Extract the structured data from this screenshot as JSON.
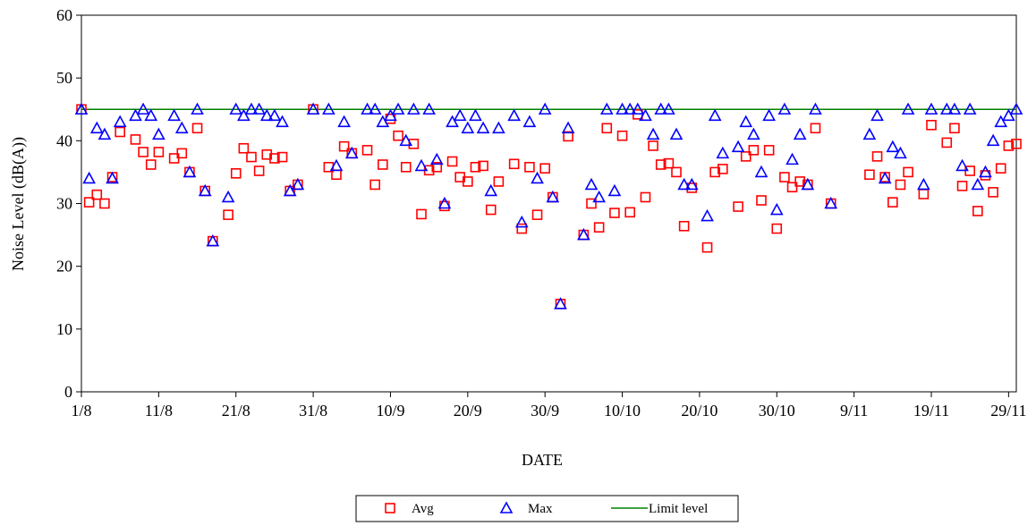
{
  "chart_data": {
    "type": "scatter",
    "title": "",
    "xlabel": "DATE",
    "ylabel": "Noise Level (dB(A))",
    "ylim": [
      0,
      60
    ],
    "yticks": [
      0,
      10,
      20,
      30,
      40,
      50,
      60
    ],
    "xlim": [
      "2000-08-01",
      "2000-11-30"
    ],
    "xticks": [
      {
        "date": "2000-08-01",
        "label": "1/8"
      },
      {
        "date": "2000-08-11",
        "label": "11/8"
      },
      {
        "date": "2000-08-21",
        "label": "21/8"
      },
      {
        "date": "2000-08-31",
        "label": "31/8"
      },
      {
        "date": "2000-09-10",
        "label": "10/9"
      },
      {
        "date": "2000-09-20",
        "label": "20/9"
      },
      {
        "date": "2000-09-30",
        "label": "30/9"
      },
      {
        "date": "2000-10-10",
        "label": "10/10"
      },
      {
        "date": "2000-10-20",
        "label": "20/10"
      },
      {
        "date": "2000-10-30",
        "label": "30/10"
      },
      {
        "date": "2000-11-09",
        "label": "9/11"
      },
      {
        "date": "2000-11-19",
        "label": "19/11"
      },
      {
        "date": "2000-11-29",
        "label": "29/11"
      }
    ],
    "grid": false,
    "legend_position": "bottom-center",
    "series": [
      {
        "name": "Avg",
        "marker": "square",
        "color": "#ff0000",
        "points": [
          [
            "2000-08-01",
            45
          ],
          [
            "2000-08-02",
            30.2
          ],
          [
            "2000-08-03",
            31.4
          ],
          [
            "2000-08-04",
            30
          ],
          [
            "2000-08-05",
            34.2
          ],
          [
            "2000-08-06",
            41.4
          ],
          [
            "2000-08-08",
            40.2
          ],
          [
            "2000-08-09",
            38.2
          ],
          [
            "2000-08-10",
            36.2
          ],
          [
            "2000-08-11",
            38.2
          ],
          [
            "2000-08-13",
            37.2
          ],
          [
            "2000-08-14",
            38
          ],
          [
            "2000-08-15",
            35
          ],
          [
            "2000-08-16",
            42
          ],
          [
            "2000-08-17",
            32
          ],
          [
            "2000-08-18",
            24
          ],
          [
            "2000-08-20",
            28.2
          ],
          [
            "2000-08-21",
            34.8
          ],
          [
            "2000-08-22",
            38.8
          ],
          [
            "2000-08-23",
            37.4
          ],
          [
            "2000-08-24",
            35.2
          ],
          [
            "2000-08-25",
            37.8
          ],
          [
            "2000-08-26",
            37.2
          ],
          [
            "2000-08-27",
            37.4
          ],
          [
            "2000-08-28",
            32
          ],
          [
            "2000-08-29",
            33
          ],
          [
            "2000-08-31",
            45
          ],
          [
            "2000-09-02",
            35.8
          ],
          [
            "2000-09-03",
            34.6
          ],
          [
            "2000-09-04",
            39.1
          ],
          [
            "2000-09-05",
            38
          ],
          [
            "2000-09-07",
            38.5
          ],
          [
            "2000-09-08",
            33
          ],
          [
            "2000-09-09",
            36.2
          ],
          [
            "2000-09-10",
            43.5
          ],
          [
            "2000-09-11",
            40.8
          ],
          [
            "2000-09-12",
            35.8
          ],
          [
            "2000-09-13",
            39.5
          ],
          [
            "2000-09-14",
            28.3
          ],
          [
            "2000-09-15",
            35.3
          ],
          [
            "2000-09-16",
            35.8
          ],
          [
            "2000-09-17",
            29.6
          ],
          [
            "2000-09-18",
            36.7
          ],
          [
            "2000-09-19",
            34.2
          ],
          [
            "2000-09-20",
            33.5
          ],
          [
            "2000-09-21",
            35.8
          ],
          [
            "2000-09-22",
            36
          ],
          [
            "2000-09-23",
            29
          ],
          [
            "2000-09-24",
            33.5
          ],
          [
            "2000-09-26",
            36.3
          ],
          [
            "2000-09-27",
            26
          ],
          [
            "2000-09-28",
            35.8
          ],
          [
            "2000-09-29",
            28.2
          ],
          [
            "2000-09-30",
            35.6
          ],
          [
            "2000-10-01",
            31
          ],
          [
            "2000-10-02",
            14
          ],
          [
            "2000-10-03",
            40.7
          ],
          [
            "2000-10-05",
            25
          ],
          [
            "2000-10-06",
            30
          ],
          [
            "2000-10-07",
            26.2
          ],
          [
            "2000-10-08",
            42
          ],
          [
            "2000-10-09",
            28.5
          ],
          [
            "2000-10-10",
            40.8
          ],
          [
            "2000-10-11",
            28.6
          ],
          [
            "2000-10-12",
            44.2
          ],
          [
            "2000-10-13",
            31
          ],
          [
            "2000-10-14",
            39.2
          ],
          [
            "2000-10-15",
            36.2
          ],
          [
            "2000-10-16",
            36.4
          ],
          [
            "2000-10-17",
            35
          ],
          [
            "2000-10-18",
            26.4
          ],
          [
            "2000-10-19",
            32.5
          ],
          [
            "2000-10-21",
            23
          ],
          [
            "2000-10-22",
            35
          ],
          [
            "2000-10-23",
            35.5
          ],
          [
            "2000-10-25",
            29.5
          ],
          [
            "2000-10-26",
            37.5
          ],
          [
            "2000-10-27",
            38.5
          ],
          [
            "2000-10-28",
            30.5
          ],
          [
            "2000-10-29",
            38.5
          ],
          [
            "2000-10-30",
            26
          ],
          [
            "2000-10-31",
            34.2
          ],
          [
            "2000-11-01",
            32.6
          ],
          [
            "2000-11-02",
            33.5
          ],
          [
            "2000-11-03",
            33
          ],
          [
            "2000-11-04",
            42
          ],
          [
            "2000-11-06",
            30
          ],
          [
            "2000-11-11",
            34.6
          ],
          [
            "2000-11-12",
            37.5
          ],
          [
            "2000-11-13",
            34.2
          ],
          [
            "2000-11-14",
            30.2
          ],
          [
            "2000-11-15",
            33
          ],
          [
            "2000-11-16",
            35
          ],
          [
            "2000-11-18",
            31.5
          ],
          [
            "2000-11-19",
            42.5
          ],
          [
            "2000-11-21",
            39.7
          ],
          [
            "2000-11-22",
            42
          ],
          [
            "2000-11-23",
            32.8
          ],
          [
            "2000-11-24",
            35.2
          ],
          [
            "2000-11-25",
            28.8
          ],
          [
            "2000-11-26",
            34.5
          ],
          [
            "2000-11-27",
            31.8
          ],
          [
            "2000-11-28",
            35.6
          ],
          [
            "2000-11-29",
            39.2
          ],
          [
            "2000-11-30",
            39.5
          ]
        ]
      },
      {
        "name": "Max",
        "marker": "triangle",
        "color": "#0000ff",
        "points": [
          [
            "2000-08-01",
            45
          ],
          [
            "2000-08-02",
            34
          ],
          [
            "2000-08-03",
            42
          ],
          [
            "2000-08-04",
            41
          ],
          [
            "2000-08-05",
            34
          ],
          [
            "2000-08-06",
            43
          ],
          [
            "2000-08-08",
            44
          ],
          [
            "2000-08-09",
            45
          ],
          [
            "2000-08-10",
            44
          ],
          [
            "2000-08-11",
            41
          ],
          [
            "2000-08-13",
            44
          ],
          [
            "2000-08-14",
            42
          ],
          [
            "2000-08-15",
            35
          ],
          [
            "2000-08-16",
            45
          ],
          [
            "2000-08-17",
            32
          ],
          [
            "2000-08-18",
            24
          ],
          [
            "2000-08-20",
            31
          ],
          [
            "2000-08-21",
            45
          ],
          [
            "2000-08-22",
            44
          ],
          [
            "2000-08-23",
            45
          ],
          [
            "2000-08-24",
            45
          ],
          [
            "2000-08-25",
            44
          ],
          [
            "2000-08-26",
            44
          ],
          [
            "2000-08-27",
            43
          ],
          [
            "2000-08-28",
            32
          ],
          [
            "2000-08-29",
            33
          ],
          [
            "2000-08-31",
            45
          ],
          [
            "2000-09-02",
            45
          ],
          [
            "2000-09-03",
            36
          ],
          [
            "2000-09-04",
            43
          ],
          [
            "2000-09-05",
            38
          ],
          [
            "2000-09-07",
            45
          ],
          [
            "2000-09-08",
            45
          ],
          [
            "2000-09-09",
            43
          ],
          [
            "2000-09-10",
            44
          ],
          [
            "2000-09-11",
            45
          ],
          [
            "2000-09-12",
            40
          ],
          [
            "2000-09-13",
            45
          ],
          [
            "2000-09-14",
            36
          ],
          [
            "2000-09-15",
            45
          ],
          [
            "2000-09-16",
            37
          ],
          [
            "2000-09-17",
            30
          ],
          [
            "2000-09-18",
            43
          ],
          [
            "2000-09-19",
            44
          ],
          [
            "2000-09-20",
            42
          ],
          [
            "2000-09-21",
            44
          ],
          [
            "2000-09-22",
            42
          ],
          [
            "2000-09-23",
            32
          ],
          [
            "2000-09-24",
            42
          ],
          [
            "2000-09-26",
            44
          ],
          [
            "2000-09-27",
            27
          ],
          [
            "2000-09-28",
            43
          ],
          [
            "2000-09-29",
            34
          ],
          [
            "2000-09-30",
            45
          ],
          [
            "2000-10-01",
            31
          ],
          [
            "2000-10-02",
            14
          ],
          [
            "2000-10-03",
            42
          ],
          [
            "2000-10-05",
            25
          ],
          [
            "2000-10-06",
            33
          ],
          [
            "2000-10-07",
            31
          ],
          [
            "2000-10-08",
            45
          ],
          [
            "2000-10-09",
            32
          ],
          [
            "2000-10-10",
            45
          ],
          [
            "2000-10-11",
            45
          ],
          [
            "2000-10-12",
            45
          ],
          [
            "2000-10-13",
            44
          ],
          [
            "2000-10-14",
            41
          ],
          [
            "2000-10-15",
            45
          ],
          [
            "2000-10-16",
            45
          ],
          [
            "2000-10-17",
            41
          ],
          [
            "2000-10-18",
            33
          ],
          [
            "2000-10-19",
            33
          ],
          [
            "2000-10-21",
            28
          ],
          [
            "2000-10-22",
            44
          ],
          [
            "2000-10-23",
            38
          ],
          [
            "2000-10-25",
            39
          ],
          [
            "2000-10-26",
            43
          ],
          [
            "2000-10-27",
            41
          ],
          [
            "2000-10-28",
            35
          ],
          [
            "2000-10-29",
            44
          ],
          [
            "2000-10-30",
            29
          ],
          [
            "2000-10-31",
            45
          ],
          [
            "2000-11-01",
            37
          ],
          [
            "2000-11-02",
            41
          ],
          [
            "2000-11-03",
            33
          ],
          [
            "2000-11-04",
            45
          ],
          [
            "2000-11-06",
            30
          ],
          [
            "2000-11-11",
            41
          ],
          [
            "2000-11-12",
            44
          ],
          [
            "2000-11-13",
            34
          ],
          [
            "2000-11-14",
            39
          ],
          [
            "2000-11-15",
            38
          ],
          [
            "2000-11-16",
            45
          ],
          [
            "2000-11-18",
            33
          ],
          [
            "2000-11-19",
            45
          ],
          [
            "2000-11-21",
            45
          ],
          [
            "2000-11-22",
            45
          ],
          [
            "2000-11-23",
            36
          ],
          [
            "2000-11-24",
            45
          ],
          [
            "2000-11-25",
            33
          ],
          [
            "2000-11-26",
            35
          ],
          [
            "2000-11-27",
            40
          ],
          [
            "2000-11-28",
            43
          ],
          [
            "2000-11-29",
            44
          ],
          [
            "2000-11-30",
            45
          ]
        ]
      },
      {
        "name": "Limit level",
        "marker": "line",
        "color": "#008000",
        "points": [
          [
            "2000-08-01",
            45
          ],
          [
            "2000-11-30",
            45
          ]
        ]
      }
    ]
  }
}
